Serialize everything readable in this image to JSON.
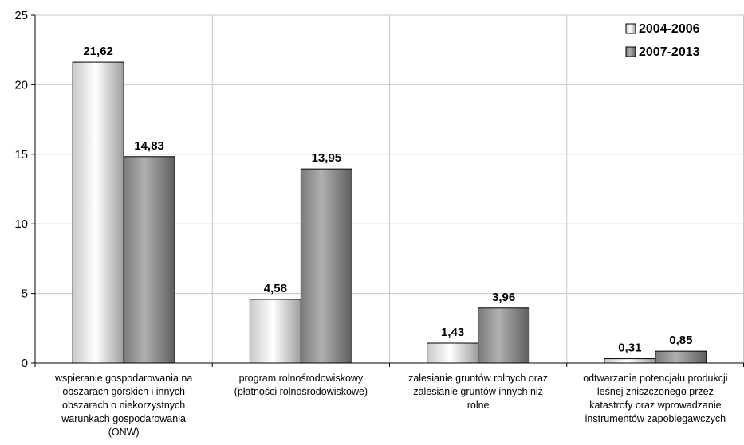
{
  "chart_data": {
    "type": "bar",
    "categories": [
      [
        "wspieranie gospodarowania na",
        "obszarach górskich i innych",
        "obszarach o niekorzystnych",
        "warunkach gospodarowania",
        "(ONW)"
      ],
      [
        "program rolnośrodowiskowy",
        "(płatności rolnośrodowiskowe)"
      ],
      [
        "zalesianie gruntów rolnych oraz",
        "zalesianie gruntów innych niż",
        "rolne"
      ],
      [
        "odtwarzanie potencjału produkcji",
        "leśnej zniszczonego przez",
        "katastrofy oraz wprowadzanie",
        "instrumentów zapobiegawczych"
      ]
    ],
    "series": [
      {
        "name": "2004-2006",
        "values": [
          21.62,
          4.58,
          1.43,
          0.31
        ],
        "labels": [
          "21,62",
          "4,58",
          "1,43",
          "0,31"
        ]
      },
      {
        "name": "2007-2013",
        "values": [
          14.83,
          13.95,
          3.96,
          0.85
        ],
        "labels": [
          "14,83",
          "13,95",
          "3,96",
          "0,85"
        ]
      }
    ],
    "yticks": [
      0,
      5,
      10,
      15,
      20,
      25
    ],
    "ylim": [
      0,
      25
    ],
    "grid": true,
    "legend": "top-right",
    "colors": {
      "series1_light": "#ffffff",
      "series1_dark": "#b5b5b5",
      "series2_light": "#a3a3a3",
      "series2_dark": "#6a6a6a",
      "grid": "#c8c8c8",
      "axis": "#000000"
    }
  }
}
